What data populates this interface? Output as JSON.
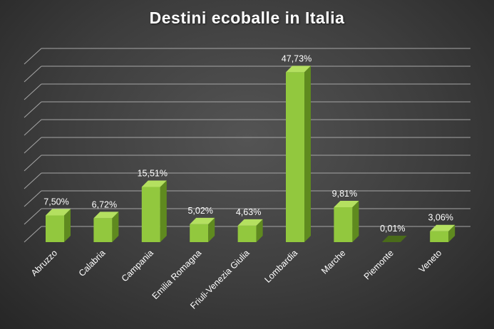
{
  "chart_data": {
    "type": "bar",
    "title": "Destini ecoballe in Italia",
    "categories": [
      "Abruzzo",
      "Calabria",
      "Campania",
      "Emilia Romagna",
      "Friuli-Venezia Giulia",
      "Lombardia",
      "Marche",
      "Piemonte",
      "Veneto"
    ],
    "values": [
      7.5,
      6.72,
      15.51,
      5.02,
      4.63,
      47.73,
      9.81,
      0.01,
      3.06
    ],
    "data_labels": [
      "7,50%",
      "6,72%",
      "15,51%",
      "5,02%",
      "4,63%",
      "47,73%",
      "9,81%",
      "0,01%",
      "3,06%"
    ],
    "ylim": [
      0,
      50
    ],
    "grid": true,
    "legend": "none",
    "style": "3d-column",
    "colors": {
      "bar": "#92c83e",
      "bar_side": "#5f8a1f",
      "bar_top": "#b4e060",
      "grid": "#a6a6a6",
      "text": "#ffffff",
      "background": "#3d3d3d"
    }
  }
}
